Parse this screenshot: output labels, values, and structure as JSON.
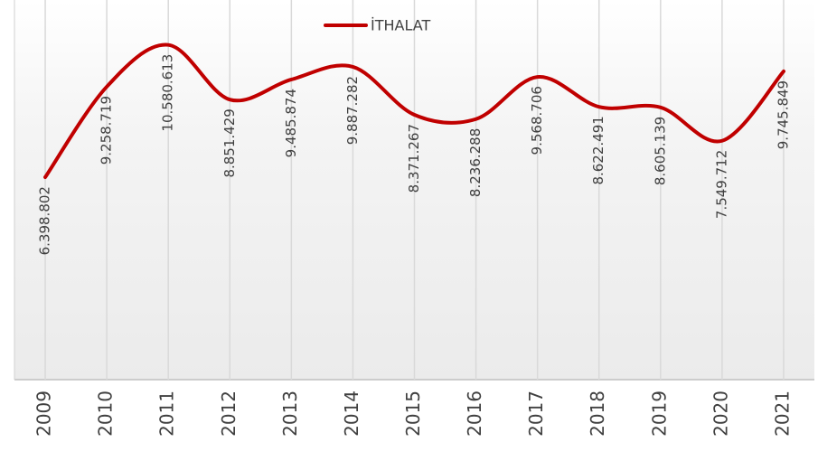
{
  "chart_data": {
    "type": "line",
    "categories": [
      "2009",
      "2010",
      "2011",
      "2012",
      "2013",
      "2014",
      "2015",
      "2016",
      "2017",
      "2018",
      "2019",
      "2020",
      "2021"
    ],
    "series": [
      {
        "name": "İTHALAT",
        "color": "#c00000",
        "values": [
          6398802,
          9258719,
          10580613,
          8851429,
          9485874,
          9887282,
          8371267,
          8236288,
          9568706,
          8622491,
          8605139,
          7549712,
          9745849
        ],
        "value_labels": [
          "6.398.802",
          "9.258.719",
          "10.580.613",
          "8.851.429",
          "9.485.874",
          "9.887.282",
          "8.371.267",
          "8.236.288",
          "9.568.706",
          "8.622.491",
          "8.605.139",
          "7.549.712",
          "9.745.849"
        ]
      }
    ],
    "ylim": [
      0,
      12000000
    ],
    "legend": "top"
  }
}
